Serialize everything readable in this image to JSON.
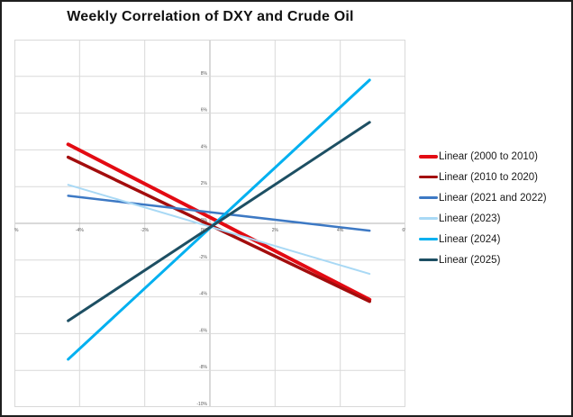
{
  "chart_data": {
    "type": "line",
    "title": "Weekly Correlation of DXY and Crude Oil",
    "xlabel": "",
    "ylabel": "",
    "grid": true,
    "legend_position": "right",
    "axis_label_color": "#595959",
    "gridline_color": "#d9d9d9",
    "zero_axis_color": "#b3b3b3",
    "x_axis": {
      "min": -6,
      "max": 6,
      "tick_values": [
        -6,
        -4,
        -2,
        0,
        2,
        4,
        6
      ],
      "tick_labels": [
        "-6%",
        "-4%",
        "-2%",
        "0%",
        "2%",
        "4%",
        "6%"
      ]
    },
    "y_axis": {
      "min": -10,
      "max": 10,
      "tick_values": [
        10,
        8,
        6,
        4,
        2,
        0,
        -2,
        -4,
        -6,
        -8,
        -10
      ],
      "tick_labels": [
        "10%",
        "8%",
        "6%",
        "4%",
        "2%",
        "0%",
        "-2%",
        "-4%",
        "-6%",
        "-8%",
        "-10%"
      ]
    },
    "series": [
      {
        "name": "Linear (2000 to 2010)",
        "color": "#e30b13",
        "width": 4,
        "points": [
          [
            -4.35,
            4.3
          ],
          [
            4.9,
            -4.15
          ]
        ]
      },
      {
        "name": "Linear (2010 to 2020)",
        "color": "#a30d0d",
        "width": 3.5,
        "points": [
          [
            -4.35,
            3.6
          ],
          [
            4.9,
            -4.25
          ]
        ]
      },
      {
        "name": "Linear (2021 and 2022)",
        "color": "#3d79c4",
        "width": 2.5,
        "points": [
          [
            -4.35,
            1.5
          ],
          [
            4.9,
            -0.4
          ]
        ]
      },
      {
        "name": "Linear (2023)",
        "color": "#a9d9f5",
        "width": 2,
        "points": [
          [
            -4.35,
            2.1
          ],
          [
            4.9,
            -2.75
          ]
        ]
      },
      {
        "name": "Linear (2024)",
        "color": "#00b0f0",
        "width": 3,
        "points": [
          [
            -4.35,
            -7.4
          ],
          [
            4.9,
            7.8
          ]
        ]
      },
      {
        "name": "Linear (2025)",
        "color": "#1d4f63",
        "width": 3,
        "points": [
          [
            -4.35,
            -5.3
          ],
          [
            4.9,
            5.5
          ]
        ]
      }
    ]
  }
}
